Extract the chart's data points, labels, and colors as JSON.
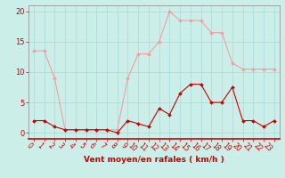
{
  "x": [
    0,
    1,
    2,
    3,
    4,
    5,
    6,
    7,
    8,
    9,
    10,
    11,
    12,
    13,
    14,
    15,
    16,
    17,
    18,
    19,
    20,
    21,
    22,
    23
  ],
  "y_avg": [
    2,
    2,
    1,
    0.5,
    0.5,
    0.5,
    0.5,
    0.5,
    0,
    2,
    1.5,
    1,
    4,
    3,
    6.5,
    8,
    8,
    5,
    5,
    7.5,
    2,
    2,
    1,
    2
  ],
  "y_gust": [
    13.5,
    13.5,
    9,
    0.5,
    0.5,
    0.5,
    0.5,
    0.5,
    0.5,
    9,
    13,
    13,
    15,
    20,
    18.5,
    18.5,
    18.5,
    16.5,
    16.5,
    11.5,
    10.5,
    10.5,
    10.5,
    10.5
  ],
  "xlabel": "Vent moyen/en rafales ( km/h )",
  "xlim_min": -0.5,
  "xlim_max": 23.5,
  "ylim_min": -1,
  "ylim_max": 21,
  "yticks": [
    0,
    5,
    10,
    15,
    20
  ],
  "xticks": [
    0,
    1,
    2,
    3,
    4,
    5,
    6,
    7,
    8,
    9,
    10,
    11,
    12,
    13,
    14,
    15,
    16,
    17,
    18,
    19,
    20,
    21,
    22,
    23
  ],
  "color_avg": "#cc0000",
  "color_gust": "#f0a0a0",
  "bg_color": "#cceee8",
  "grid_color": "#aadddd",
  "axis_label_color": "#cc0000",
  "tick_color": "#cc0000",
  "spine_color": "#888888",
  "marker": "D",
  "markersize": 2.0,
  "linewidth": 0.8,
  "xlabel_fontsize": 6.5,
  "tick_fontsize": 5.5,
  "ytick_fontsize": 6.0
}
